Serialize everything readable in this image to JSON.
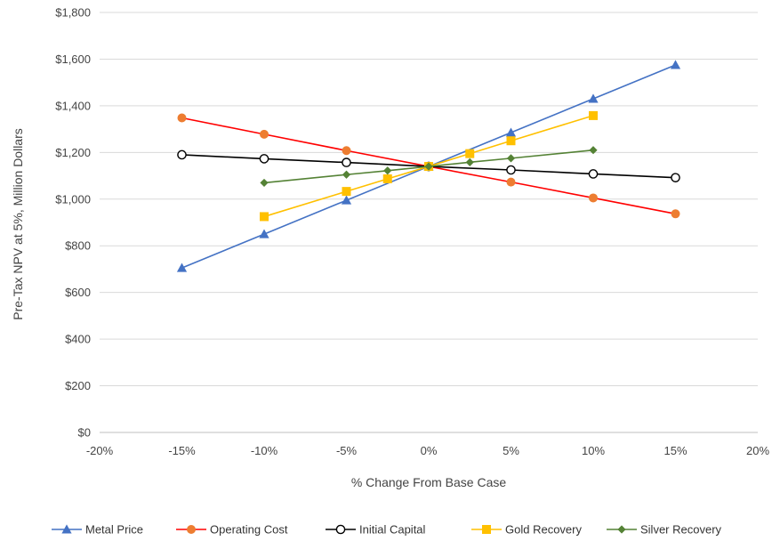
{
  "chart_data": {
    "type": "line",
    "title": "",
    "xlabel": "% Change From Base Case",
    "ylabel": "Pre-Tax NPV at 5%, Million Dollars",
    "xlim": [
      -20,
      20
    ],
    "ylim": [
      0,
      1800
    ],
    "x_ticks": [
      -20,
      -15,
      -10,
      -5,
      0,
      5,
      10,
      15,
      20
    ],
    "x_tick_labels": [
      "-20%",
      "-15%",
      "-10%",
      "-5%",
      "0%",
      "5%",
      "10%",
      "15%",
      "20%"
    ],
    "y_ticks": [
      0,
      200,
      400,
      600,
      800,
      1000,
      1200,
      1400,
      1600,
      1800
    ],
    "y_tick_labels": [
      "$0",
      "$200",
      "$400",
      "$600",
      "$800",
      "$1,000",
      "$1,200",
      "$1,400",
      "$1,600",
      "$1,800"
    ],
    "grid": "horizontal",
    "legend_position": "bottom",
    "series": [
      {
        "name": "Metal Price",
        "color": "#4472C4",
        "marker": "triangle",
        "x": [
          -15,
          -10,
          -5,
          0,
          5,
          10,
          15
        ],
        "y": [
          705,
          850,
          995,
          1140,
          1285,
          1430,
          1575
        ]
      },
      {
        "name": "Operating Cost",
        "color": "#FF0000",
        "marker_fill": "#ED7D31",
        "marker": "circle",
        "x": [
          -15,
          -10,
          -5,
          0,
          5,
          10,
          15
        ],
        "y": [
          1348,
          1278,
          1208,
          1140,
          1073,
          1005,
          937
        ]
      },
      {
        "name": "Initial Capital",
        "color": "#000000",
        "marker": "open-circle",
        "x": [
          -15,
          -10,
          -5,
          0,
          5,
          10,
          15
        ],
        "y": [
          1190,
          1173,
          1157,
          1140,
          1125,
          1108,
          1092
        ]
      },
      {
        "name": "Gold Recovery",
        "color": "#FFC000",
        "marker": "square",
        "x": [
          -10,
          -5,
          -2.5,
          0,
          2.5,
          5,
          10
        ],
        "y": [
          925,
          1033,
          1087,
          1140,
          1195,
          1250,
          1358
        ]
      },
      {
        "name": "Silver Recovery",
        "color": "#548235",
        "marker": "diamond",
        "x": [
          -10,
          -5,
          -2.5,
          0,
          2.5,
          5,
          10
        ],
        "y": [
          1070,
          1105,
          1122,
          1140,
          1158,
          1175,
          1210
        ]
      }
    ]
  }
}
